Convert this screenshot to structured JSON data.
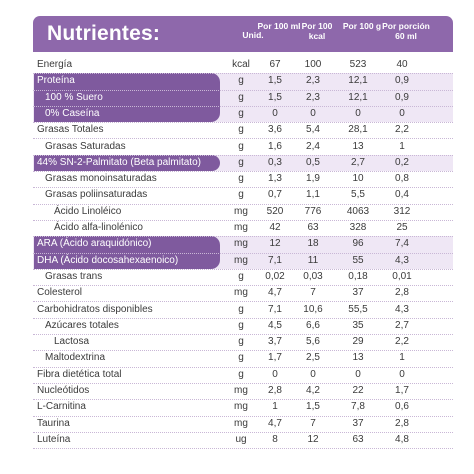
{
  "header": {
    "title": "Nutrientes:",
    "columns": [
      "Unid.",
      "Por 100 ml",
      "Por 100 kcal",
      "Por 100 g",
      "Por porción 60 ml"
    ]
  },
  "rows": [
    {
      "label": "Energía",
      "indent": 0,
      "unit": "kcal",
      "v1": "67",
      "v2": "100",
      "v3": "523",
      "v4": "40"
    },
    {
      "label": "Proteína",
      "indent": 0,
      "unit": "g",
      "v1": "1,5",
      "v2": "2,3",
      "v3": "12,1",
      "v4": "0,9"
    },
    {
      "label": "100 % Suero",
      "indent": 1,
      "unit": "g",
      "v1": "1,5",
      "v2": "2,3",
      "v3": "12,1",
      "v4": "0,9"
    },
    {
      "label": "0% Caseína",
      "indent": 1,
      "unit": "g",
      "v1": "0",
      "v2": "0",
      "v3": "0",
      "v4": "0"
    },
    {
      "label": "Grasas Totales",
      "indent": 0,
      "unit": "g",
      "v1": "3,6",
      "v2": "5,4",
      "v3": "28,1",
      "v4": "2,2"
    },
    {
      "label": "Grasas Saturadas",
      "indent": 1,
      "unit": "g",
      "v1": "1,6",
      "v2": "2,4",
      "v3": "13",
      "v4": "1"
    },
    {
      "label": "44% SN-2-Palmitato (Beta palmitato)",
      "indent": 0,
      "unit": "g",
      "v1": "0,3",
      "v2": "0,5",
      "v3": "2,7",
      "v4": "0,2"
    },
    {
      "label": "Grasas monoinsaturadas",
      "indent": 1,
      "unit": "g",
      "v1": "1,3",
      "v2": "1,9",
      "v3": "10",
      "v4": "0,8"
    },
    {
      "label": "Grasas poliinsaturadas",
      "indent": 1,
      "unit": "g",
      "v1": "0,7",
      "v2": "1,1",
      "v3": "5,5",
      "v4": "0,4"
    },
    {
      "label": "Ácido Linoléico",
      "indent": 2,
      "unit": "mg",
      "v1": "520",
      "v2": "776",
      "v3": "4063",
      "v4": "312"
    },
    {
      "label": "Ácido alfa-linolénico",
      "indent": 2,
      "unit": "mg",
      "v1": "42",
      "v2": "63",
      "v3": "328",
      "v4": "25"
    },
    {
      "label": "ARA (Ácido araquidónico)",
      "indent": 0,
      "unit": "mg",
      "v1": "12",
      "v2": "18",
      "v3": "96",
      "v4": "7,4"
    },
    {
      "label": "DHA (Ácido docosahexaenoico)",
      "indent": 0,
      "unit": "mg",
      "v1": "7,1",
      "v2": "11",
      "v3": "55",
      "v4": "4,3"
    },
    {
      "label": "Grasas trans",
      "indent": 1,
      "unit": "g",
      "v1": "0,02",
      "v2": "0,03",
      "v3": "0,18",
      "v4": "0,01"
    },
    {
      "label": "Colesterol",
      "indent": 0,
      "unit": "mg",
      "v1": "4,7",
      "v2": "7",
      "v3": "37",
      "v4": "2,8"
    },
    {
      "label": "Carbohidratos disponibles",
      "indent": 0,
      "unit": "g",
      "v1": "7,1",
      "v2": "10,6",
      "v3": "55,5",
      "v4": "4,3"
    },
    {
      "label": "Azúcares totales",
      "indent": 1,
      "unit": "g",
      "v1": "4,5",
      "v2": "6,6",
      "v3": "35",
      "v4": "2,7"
    },
    {
      "label": "Lactosa",
      "indent": 2,
      "unit": "g",
      "v1": "3,7",
      "v2": "5,6",
      "v3": "29",
      "v4": "2,2"
    },
    {
      "label": "Maltodextrina",
      "indent": 1,
      "unit": "g",
      "v1": "1,7",
      "v2": "2,5",
      "v3": "13",
      "v4": "1"
    },
    {
      "label": "Fibra dietética total",
      "indent": 0,
      "unit": "g",
      "v1": "0",
      "v2": "0",
      "v3": "0",
      "v4": "0"
    },
    {
      "label": "Nucleótidos",
      "indent": 0,
      "unit": "mg",
      "v1": "2,8",
      "v2": "4,2",
      "v3": "22",
      "v4": "1,7"
    },
    {
      "label": "L-Carnitina",
      "indent": 0,
      "unit": "mg",
      "v1": "1",
      "v2": "1,5",
      "v3": "7,8",
      "v4": "0,6"
    },
    {
      "label": "Taurina",
      "indent": 0,
      "unit": "mg",
      "v1": "4,7",
      "v2": "7",
      "v3": "37",
      "v4": "2,8"
    },
    {
      "label": "Luteína",
      "indent": 0,
      "unit": "ug",
      "v1": "8",
      "v2": "12",
      "v3": "63",
      "v4": "4,8"
    }
  ],
  "colors": {
    "header": "#8e68ab",
    "highlight_pill": "#7f5a9e",
    "highlight_band": "#efe7f5"
  }
}
